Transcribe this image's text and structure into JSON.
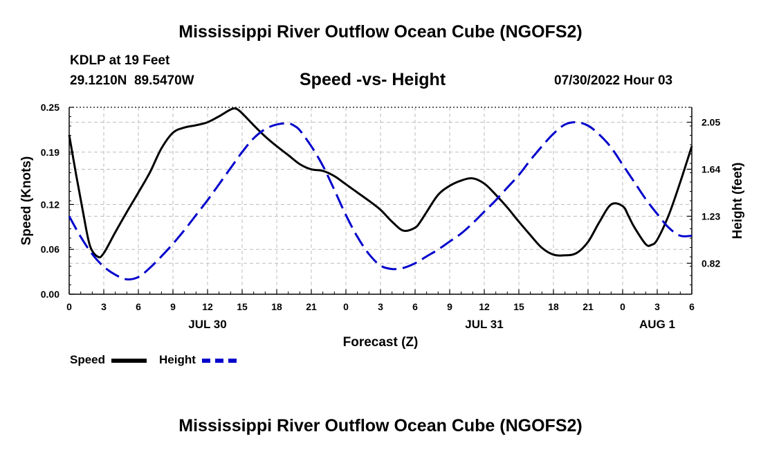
{
  "header": {
    "title": "Mississippi River Outflow Ocean Cube (NGOFS2)",
    "station": "KDLP at 19 Feet",
    "coordinates": "29.1210N  89.5470W",
    "subtitle": "Speed -vs- Height",
    "datetime": "07/30/2022 Hour 03"
  },
  "footer": {
    "title": "Mississippi River Outflow Ocean Cube (NGOFS2)"
  },
  "legend": {
    "speed_label": "Speed",
    "height_label": "Height"
  },
  "colors": {
    "speed": "#000000",
    "height": "#0000cc",
    "grid": "#bbbbbb"
  },
  "chart_data": {
    "type": "line",
    "xlabel": "Forecast (Z)",
    "ylabel": "Speed (Knots)",
    "y2label": "Height (feet)",
    "xlim": [
      0,
      54
    ],
    "ylim": [
      0,
      0.25
    ],
    "y2lim": [
      0.55,
      2.18
    ],
    "x_ticks": [
      0,
      3,
      6,
      9,
      12,
      15,
      18,
      21,
      24,
      27,
      30,
      33,
      36,
      39,
      42,
      45,
      48,
      51,
      54
    ],
    "x_tick_labels": [
      "0",
      "3",
      "6",
      "9",
      "12",
      "15",
      "18",
      "21",
      "0",
      "3",
      "6",
      "9",
      "12",
      "15",
      "18",
      "21",
      "0",
      "3",
      "6"
    ],
    "date_labels": [
      {
        "x": 12,
        "label": "JUL 30"
      },
      {
        "x": 36,
        "label": "JUL 31"
      },
      {
        "x": 51,
        "label": "AUG 1"
      }
    ],
    "y_ticks": [
      0.0,
      0.06,
      0.12,
      0.19,
      0.25
    ],
    "y_tick_labels": [
      "0.00",
      "0.06",
      "0.12",
      "0.19",
      "0.25"
    ],
    "y2_ticks": [
      0.82,
      1.23,
      1.64,
      2.05
    ],
    "y2_tick_labels": [
      "0.82",
      "1.23",
      "1.64",
      "2.05"
    ],
    "grid": true,
    "series": [
      {
        "name": "Speed",
        "axis": "left",
        "style": "solid",
        "x": [
          0,
          0.6,
          1.2,
          1.8,
          2.5,
          3,
          4,
          5,
          6,
          7,
          8,
          9,
          10,
          11,
          12,
          13,
          14,
          14.5,
          15,
          16,
          17,
          18,
          19,
          20,
          21,
          22,
          23,
          24,
          25,
          26,
          27,
          28,
          29,
          30,
          30.5,
          31,
          32,
          33,
          34,
          35,
          36,
          37,
          38,
          39,
          40,
          41,
          42,
          43,
          44,
          45,
          46,
          47,
          48,
          48.5,
          49,
          50,
          50.5,
          51,
          52,
          53,
          54
        ],
        "y": [
          0.213,
          0.16,
          0.11,
          0.065,
          0.05,
          0.055,
          0.083,
          0.11,
          0.136,
          0.163,
          0.195,
          0.216,
          0.223,
          0.226,
          0.23,
          0.238,
          0.247,
          0.248,
          0.242,
          0.226,
          0.211,
          0.198,
          0.186,
          0.174,
          0.167,
          0.165,
          0.158,
          0.147,
          0.136,
          0.125,
          0.113,
          0.097,
          0.085,
          0.089,
          0.098,
          0.11,
          0.133,
          0.145,
          0.152,
          0.155,
          0.148,
          0.133,
          0.116,
          0.097,
          0.079,
          0.062,
          0.053,
          0.052,
          0.055,
          0.07,
          0.097,
          0.12,
          0.118,
          0.105,
          0.09,
          0.067,
          0.066,
          0.073,
          0.106,
          0.15,
          0.198
        ]
      },
      {
        "name": "Height",
        "axis": "right",
        "style": "dashed",
        "x": [
          0,
          1,
          2,
          3,
          4,
          5,
          6,
          7,
          8,
          9,
          10,
          11,
          12,
          13,
          14,
          15,
          16,
          17,
          18,
          19,
          19.5,
          20,
          21,
          22,
          23,
          24,
          25,
          26,
          27,
          28,
          29,
          30,
          31,
          32,
          33,
          34,
          35,
          36,
          37,
          38,
          39,
          40,
          41,
          42,
          43,
          44,
          45,
          46,
          47,
          48,
          49,
          50,
          51,
          52,
          53,
          54
        ],
        "y": [
          1.23,
          1.05,
          0.9,
          0.79,
          0.72,
          0.68,
          0.7,
          0.78,
          0.88,
          0.99,
          1.11,
          1.24,
          1.37,
          1.51,
          1.65,
          1.79,
          1.91,
          1.99,
          2.03,
          2.04,
          2.02,
          1.98,
          1.84,
          1.67,
          1.46,
          1.24,
          1.05,
          0.9,
          0.8,
          0.77,
          0.78,
          0.82,
          0.88,
          0.94,
          1.01,
          1.08,
          1.17,
          1.27,
          1.37,
          1.48,
          1.59,
          1.72,
          1.84,
          1.95,
          2.03,
          2.05,
          2.02,
          1.94,
          1.83,
          1.68,
          1.53,
          1.38,
          1.25,
          1.13,
          1.06,
          1.06
        ]
      }
    ]
  }
}
